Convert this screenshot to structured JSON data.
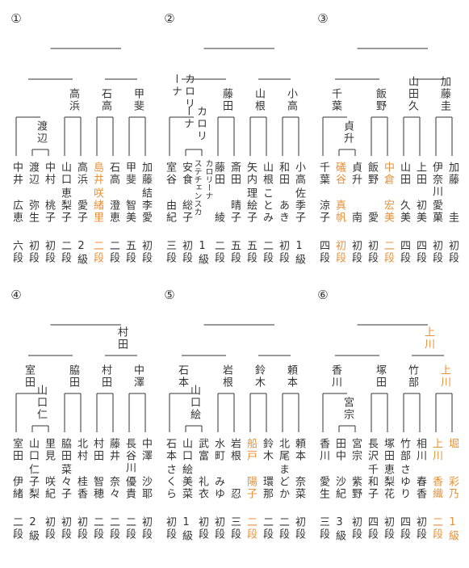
{
  "brackets": [
    {
      "number": "①",
      "tree": {
        "children": [
          {
            "children": [
              {
                "children": [
                  {
                    "family": "中井",
                    "given": "広恵",
                    "rank": "六段"
                  },
                  {
                    "label": "渡辺",
                    "children": [
                      {
                        "family": "渡辺",
                        "given": "弥生",
                        "rank": "初段"
                      },
                      {
                        "family": "中村",
                        "given": "桃子",
                        "rank": "初段"
                      }
                    ]
                  }
                ]
              },
              {
                "label": "高浜",
                "children": [
                  {
                    "family": "山口",
                    "given": "恵梨子",
                    "rank": "二段"
                  },
                  {
                    "family": "高浜",
                    "given": "愛子",
                    "rank": "2級"
                  }
                ]
              }
            ]
          },
          {
            "children": [
              {
                "label": "石高",
                "children": [
                  {
                    "family": "島井",
                    "given": "咲緒里",
                    "rank": "二段",
                    "highlight": true
                  },
                  {
                    "family": "石高",
                    "given": "澄恵",
                    "rank": "二段"
                  }
                ]
              },
              {
                "label": "甲斐",
                "children": [
                  {
                    "family": "甲斐",
                    "given": "智美",
                    "rank": "五段"
                  },
                  {
                    "family": "加藤",
                    "given": "結李愛",
                    "rank": "初段"
                  }
                ]
              }
            ]
          }
        ]
      }
    },
    {
      "number": "②",
      "tree": {
        "children": [
          {
            "children": [
              {
                "label": "カロリーナ",
                "children": [
                  {
                    "family": "室谷",
                    "given": "由紀",
                    "rank": "三段"
                  },
                  {
                    "label": "カロリーナ",
                    "children": [
                      {
                        "family": "安食",
                        "given": "総子",
                        "rank": "初段"
                      },
                      {
                        "family": "カロリーナ",
                        "given": "ステチェンスカ",
                        "rank": "1級"
                      }
                    ]
                  }
                ]
              },
              {
                "label": "藤田",
                "children": [
                  {
                    "family": "藤田",
                    "given": "綾",
                    "rank": "二段"
                  },
                  {
                    "family": "斎田",
                    "given": "晴子",
                    "rank": "五段"
                  }
                ]
              }
            ]
          },
          {
            "children": [
              {
                "label": "山根",
                "children": [
                  {
                    "family": "矢内",
                    "given": "理絵子",
                    "rank": "五段"
                  },
                  {
                    "family": "山根",
                    "given": "ことみ",
                    "rank": "二段"
                  }
                ]
              },
              {
                "label": "小高",
                "children": [
                  {
                    "family": "和田",
                    "given": "あき",
                    "rank": "初段"
                  },
                  {
                    "family": "小高",
                    "given": "佐季子",
                    "rank": "1級"
                  }
                ]
              }
            ]
          }
        ]
      }
    },
    {
      "number": "③",
      "tree": {
        "children": [
          {
            "children": [
              {
                "label": "千葉",
                "children": [
                  {
                    "family": "千葉",
                    "given": "涼子",
                    "rank": "四段"
                  },
                  {
                    "label": "貞升",
                    "children": [
                      {
                        "family": "礒谷",
                        "given": "真帆",
                        "rank": "初段",
                        "highlight": true
                      },
                      {
                        "family": "貞升",
                        "given": "南",
                        "rank": "初段"
                      }
                    ]
                  }
                ]
              },
              {
                "label": "飯野",
                "children": [
                  {
                    "family": "飯野",
                    "given": "愛",
                    "rank": "初段"
                  },
                  {
                    "family": "中倉",
                    "given": "宏美",
                    "rank": "二段",
                    "highlight": true
                  }
                ]
              }
            ]
          },
          {
            "children": [
              {
                "label": "山田久",
                "children": [
                  {
                    "family": "山田",
                    "given": "久美",
                    "rank": "四段"
                  },
                  {
                    "family": "上田",
                    "given": "初美",
                    "rank": "四段"
                  }
                ]
              },
              {
                "label": "加藤圭",
                "children": [
                  {
                    "family": "伊奈川",
                    "given": "愛菓",
                    "rank": "初段"
                  },
                  {
                    "family": "加藤",
                    "given": "圭",
                    "rank": "初段"
                  }
                ]
              }
            ]
          }
        ]
      }
    },
    {
      "number": "④",
      "tree": {
        "children": [
          {
            "children": [
              {
                "label": "室田",
                "children": [
                  {
                    "family": "室田",
                    "given": "伊緒",
                    "rank": "二段"
                  },
                  {
                    "label": "山口仁",
                    "children": [
                      {
                        "family": "山口",
                        "given": "仁子梨",
                        "rank": "2級"
                      },
                      {
                        "family": "里見",
                        "given": "咲紀",
                        "rank": "初段"
                      }
                    ]
                  }
                ]
              },
              {
                "label": "脇田",
                "children": [
                  {
                    "family": "脇田",
                    "given": "菜々子",
                    "rank": "初段"
                  },
                  {
                    "family": "北村",
                    "given": "桂香",
                    "rank": "初段"
                  }
                ]
              }
            ]
          },
          {
            "label": "村田",
            "children": [
              {
                "label": "村田",
                "children": [
                  {
                    "family": "村田",
                    "given": "智穂",
                    "rank": "二段"
                  },
                  {
                    "family": "藤井",
                    "given": "奈々",
                    "rank": "二段"
                  }
                ]
              },
              {
                "label": "中澤",
                "children": [
                  {
                    "family": "長谷川",
                    "given": "優貴",
                    "rank": "二段"
                  },
                  {
                    "family": "中澤",
                    "given": "沙耶",
                    "rank": "初段"
                  }
                ]
              }
            ]
          }
        ]
      }
    },
    {
      "number": "⑤",
      "tree": {
        "children": [
          {
            "children": [
              {
                "label": "石本",
                "children": [
                  {
                    "family": "石本",
                    "given": "さくら",
                    "rank": "初段"
                  },
                  {
                    "label": "山口絵",
                    "children": [
                      {
                        "family": "山口",
                        "given": "絵美菜",
                        "rank": "1級"
                      },
                      {
                        "family": "武富",
                        "given": "礼衣",
                        "rank": "初段"
                      }
                    ]
                  }
                ]
              },
              {
                "label": "岩根",
                "children": [
                  {
                    "family": "水町",
                    "given": "みゆ",
                    "rank": "初段"
                  },
                  {
                    "family": "岩根",
                    "given": "忍",
                    "rank": "三段"
                  }
                ]
              }
            ]
          },
          {
            "children": [
              {
                "label": "鈴木",
                "children": [
                  {
                    "family": "船戸",
                    "given": "陽子",
                    "rank": "二段",
                    "highlight": true
                  },
                  {
                    "family": "鈴木",
                    "given": "環那",
                    "rank": "二段"
                  }
                ]
              },
              {
                "label": "頼本",
                "children": [
                  {
                    "family": "北尾",
                    "given": "まどか",
                    "rank": "二段"
                  },
                  {
                    "family": "頼本",
                    "given": "奈菜",
                    "rank": "初段"
                  }
                ]
              }
            ]
          }
        ]
      }
    },
    {
      "number": "⑥",
      "tree": {
        "children": [
          {
            "children": [
              {
                "label": "香川",
                "children": [
                  {
                    "family": "香川",
                    "given": "愛生",
                    "rank": "三段"
                  },
                  {
                    "label": "宮宗",
                    "children": [
                      {
                        "family": "田中",
                        "given": "沙紀",
                        "rank": "3級"
                      },
                      {
                        "family": "宮宗",
                        "given": "紫野",
                        "rank": "初段"
                      }
                    ]
                  }
                ]
              },
              {
                "label": "塚田",
                "children": [
                  {
                    "family": "長沢",
                    "given": "千和子",
                    "rank": "四段"
                  },
                  {
                    "family": "塚田",
                    "given": "恵梨花",
                    "rank": "初段"
                  }
                ]
              }
            ]
          },
          {
            "label": "上川",
            "highlight": true,
            "children": [
              {
                "label": "竹部",
                "children": [
                  {
                    "family": "竹部",
                    "given": "さゆり",
                    "rank": "四段"
                  },
                  {
                    "family": "相川",
                    "given": "春香",
                    "rank": "初段"
                  }
                ]
              },
              {
                "label": "上川",
                "highlight": true,
                "children": [
                  {
                    "family": "上川",
                    "given": "香織",
                    "rank": "二段",
                    "highlight": true
                  },
                  {
                    "family": "堀",
                    "given": "彩乃",
                    "rank": "1級",
                    "highlight": true
                  }
                ]
              }
            ]
          }
        ]
      }
    }
  ]
}
